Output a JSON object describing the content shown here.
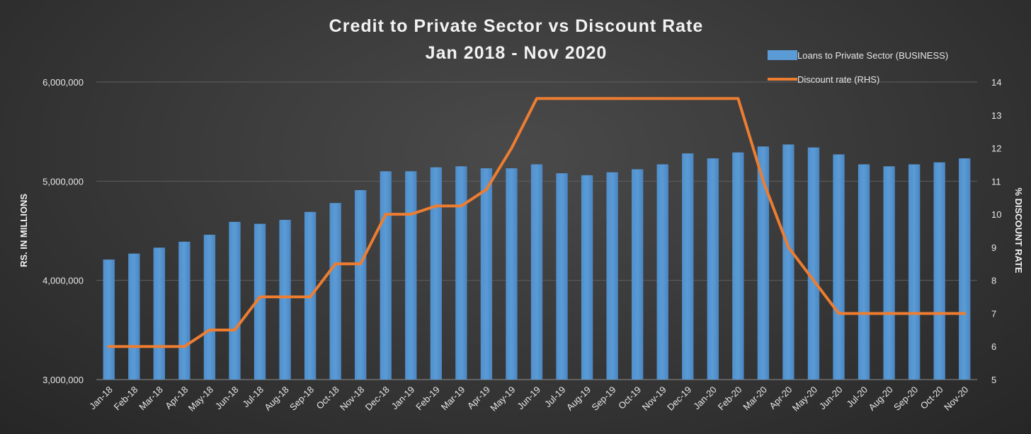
{
  "chart_data": {
    "type": "bar",
    "title": "Credit to Private Sector vs Discount Rate",
    "subtitle": "Jan 2018 - Nov 2020",
    "ylabel": "RS. IN MILLIONS",
    "y2label": "% DISCOUNT RATE",
    "ylim": [
      3000000,
      6000000
    ],
    "y2lim": [
      5,
      14
    ],
    "yticks": [
      "3,000,000",
      "4,000,000",
      "5,000,000",
      "6,000,000"
    ],
    "y2ticks": [
      "5",
      "6",
      "7",
      "8",
      "9",
      "10",
      "11",
      "12",
      "13",
      "14"
    ],
    "grid": true,
    "legend_position": "top-right",
    "categories": [
      "Jan-18",
      "Feb-18",
      "Mar-18",
      "Apr-18",
      "May-18",
      "Jun-18",
      "Jul-18",
      "Aug-18",
      "Sep-18",
      "Oct-18",
      "Nov-18",
      "Dec-18",
      "Jan-19",
      "Feb-19",
      "Mar-19",
      "Apr-19",
      "May-19",
      "Jun-19",
      "Jul-19",
      "Aug-19",
      "Sep-19",
      "Oct-19",
      "Nov-19",
      "Dec-19",
      "Jan-20",
      "Feb-20",
      "Mar-20",
      "Apr-20",
      "May-20",
      "Jun-20",
      "Jul-20",
      "Aug-20",
      "Sep-20",
      "Oct-20",
      "Nov-20"
    ],
    "series": [
      {
        "name": "Loans to Private Sector (BUSINESS)",
        "type": "bar",
        "axis": "left",
        "color": "#5b9bd5",
        "values": [
          4210000,
          4270000,
          4330000,
          4390000,
          4460000,
          4590000,
          4570000,
          4610000,
          4690000,
          4780000,
          4910000,
          5100000,
          5100000,
          5140000,
          5150000,
          5130000,
          5130000,
          5170000,
          5080000,
          5060000,
          5090000,
          5120000,
          5170000,
          5280000,
          5230000,
          5290000,
          5350000,
          5370000,
          5340000,
          5270000,
          5170000,
          5150000,
          5170000,
          5190000,
          5230000
        ]
      },
      {
        "name": "Discount rate (RHS)",
        "type": "line",
        "axis": "right",
        "color": "#ed7d31",
        "values": [
          6,
          6,
          6,
          6,
          6.5,
          6.5,
          7.5,
          7.5,
          7.5,
          8.5,
          8.5,
          10,
          10,
          10.25,
          10.25,
          10.75,
          12,
          13.5,
          13.5,
          13.5,
          13.5,
          13.5,
          13.5,
          13.5,
          13.5,
          13.5,
          11,
          9,
          8,
          7,
          7,
          7,
          7,
          7,
          7
        ]
      }
    ]
  }
}
